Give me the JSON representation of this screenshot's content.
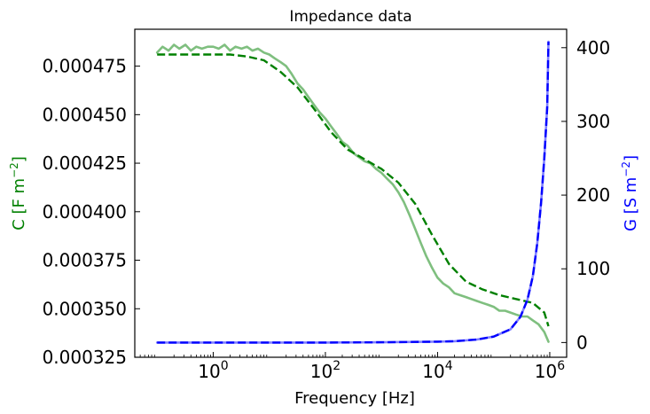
{
  "chart_data": {
    "type": "line",
    "title": "Impedance data",
    "xlabel": "Frequency [Hz]",
    "ylabel_left": "C [F m$^{-2}$]",
    "ylabel_left_display": [
      "C [F m",
      "−2",
      "]"
    ],
    "ylabel_right_display": [
      "G [S m",
      "−2",
      "]"
    ],
    "x_scale": "log",
    "xlim": [
      0.04,
      2000000
    ],
    "ylim_left": [
      0.000325,
      0.000494
    ],
    "ylim_right": [
      -20,
      425
    ],
    "x_ticks": [
      {
        "value": 1,
        "base": "10",
        "exp": "0"
      },
      {
        "value": 100,
        "base": "10",
        "exp": "2"
      },
      {
        "value": 10000,
        "base": "10",
        "exp": "4"
      },
      {
        "value": 1000000,
        "base": "10",
        "exp": "6"
      }
    ],
    "y_ticks_left": [
      {
        "value": 0.000325,
        "label": "0.000325"
      },
      {
        "value": 0.00035,
        "label": "0.000350"
      },
      {
        "value": 0.000375,
        "label": "0.000375"
      },
      {
        "value": 0.0004,
        "label": "0.000400"
      },
      {
        "value": 0.000425,
        "label": "0.000425"
      },
      {
        "value": 0.00045,
        "label": "0.000450"
      },
      {
        "value": 0.000475,
        "label": "0.000475"
      }
    ],
    "y_ticks_right": [
      {
        "value": 0,
        "label": "0"
      },
      {
        "value": 100,
        "label": "100"
      },
      {
        "value": 200,
        "label": "200"
      },
      {
        "value": 300,
        "label": "300"
      },
      {
        "value": 400,
        "label": "400"
      }
    ],
    "colors": {
      "capacitance_axis": "#008000",
      "capacitance_measured": "#7fbf7f",
      "capacitance_fit": "#008000",
      "conductance_axis": "#0000ff",
      "conductance_measured": "#8080ff",
      "conductance_fit": "#0000ff"
    },
    "series": [
      {
        "axis": "left",
        "style": "solid",
        "color_key": "capacitance_measured",
        "x": [
          0.1,
          0.125,
          0.16,
          0.2,
          0.25,
          0.32,
          0.4,
          0.5,
          0.63,
          0.8,
          1,
          1.25,
          1.6,
          2,
          2.5,
          3.2,
          4,
          5,
          6.3,
          8,
          10,
          12.5,
          16,
          20,
          25,
          32,
          40,
          50,
          63,
          80,
          100,
          126,
          160,
          200,
          250,
          320,
          400,
          500,
          630,
          800,
          1000,
          1260,
          1600,
          2000,
          2500,
          3200,
          4000,
          5000,
          6300,
          8000,
          10000,
          12600,
          16000,
          20000,
          25000,
          32000,
          40000,
          50000,
          63000,
          80000,
          100000,
          126000,
          160000,
          200000,
          250000,
          320000,
          400000,
          500000,
          630000,
          800000,
          950000
        ],
        "y": [
          0.000482,
          0.000485,
          0.000483,
          0.000486,
          0.000484,
          0.000486,
          0.000483,
          0.000485,
          0.000484,
          0.000485,
          0.000485,
          0.000484,
          0.000486,
          0.000483,
          0.000485,
          0.000484,
          0.000485,
          0.000483,
          0.000484,
          0.000482,
          0.000481,
          0.000479,
          0.000477,
          0.000475,
          0.000471,
          0.000466,
          0.000463,
          0.000459,
          0.000455,
          0.000451,
          0.000448,
          0.000444,
          0.00044,
          0.000436,
          0.000434,
          0.00043,
          0.000428,
          0.000426,
          0.000425,
          0.000422,
          0.00042,
          0.000417,
          0.000414,
          0.00041,
          0.000405,
          0.000398,
          0.000391,
          0.000384,
          0.000377,
          0.000371,
          0.000366,
          0.000363,
          0.000361,
          0.000358,
          0.000357,
          0.000356,
          0.000355,
          0.000354,
          0.000353,
          0.000352,
          0.000351,
          0.000349,
          0.000349,
          0.000348,
          0.000347,
          0.000346,
          0.000346,
          0.000344,
          0.000342,
          0.000338,
          0.000333
        ]
      },
      {
        "axis": "left",
        "style": "dashed",
        "color_key": "capacitance_fit",
        "x": [
          0.1,
          0.2,
          0.5,
          1,
          2,
          4,
          8,
          16,
          32,
          63,
          126,
          250,
          500,
          1000,
          2000,
          4000,
          8000,
          16000,
          32000,
          63000,
          126000,
          250000,
          500000,
          800000,
          950000
        ],
        "y": [
          0.000481,
          0.000481,
          0.000481,
          0.000481,
          0.000481,
          0.00048,
          0.000478,
          0.000472,
          0.000464,
          0.000453,
          0.000441,
          0.000432,
          0.000427,
          0.000422,
          0.000415,
          0.000404,
          0.000388,
          0.000373,
          0.000364,
          0.00036,
          0.000357,
          0.000355,
          0.000353,
          0.000348,
          0.000341
        ]
      },
      {
        "axis": "right",
        "style": "solid",
        "color_key": "conductance_measured",
        "x": [
          0.1,
          1,
          10,
          100,
          1000,
          10000,
          20000,
          50000,
          100000,
          200000,
          300000,
          400000,
          500000,
          600000,
          700000,
          800000,
          900000,
          950000
        ],
        "y": [
          0,
          0,
          0,
          0,
          0.3,
          1.2,
          1.8,
          4,
          8,
          18,
          35,
          58,
          90,
          135,
          190,
          250,
          320,
          408
        ]
      },
      {
        "axis": "right",
        "style": "dashed",
        "color_key": "conductance_fit",
        "x": [
          0.1,
          1,
          10,
          100,
          1000,
          10000,
          20000,
          50000,
          100000,
          200000,
          300000,
          400000,
          500000,
          600000,
          700000,
          800000,
          900000,
          950000
        ],
        "y": [
          0,
          0,
          0,
          0,
          0.3,
          1.2,
          1.8,
          4,
          8,
          18,
          35,
          58,
          90,
          135,
          190,
          250,
          320,
          408
        ]
      }
    ]
  }
}
